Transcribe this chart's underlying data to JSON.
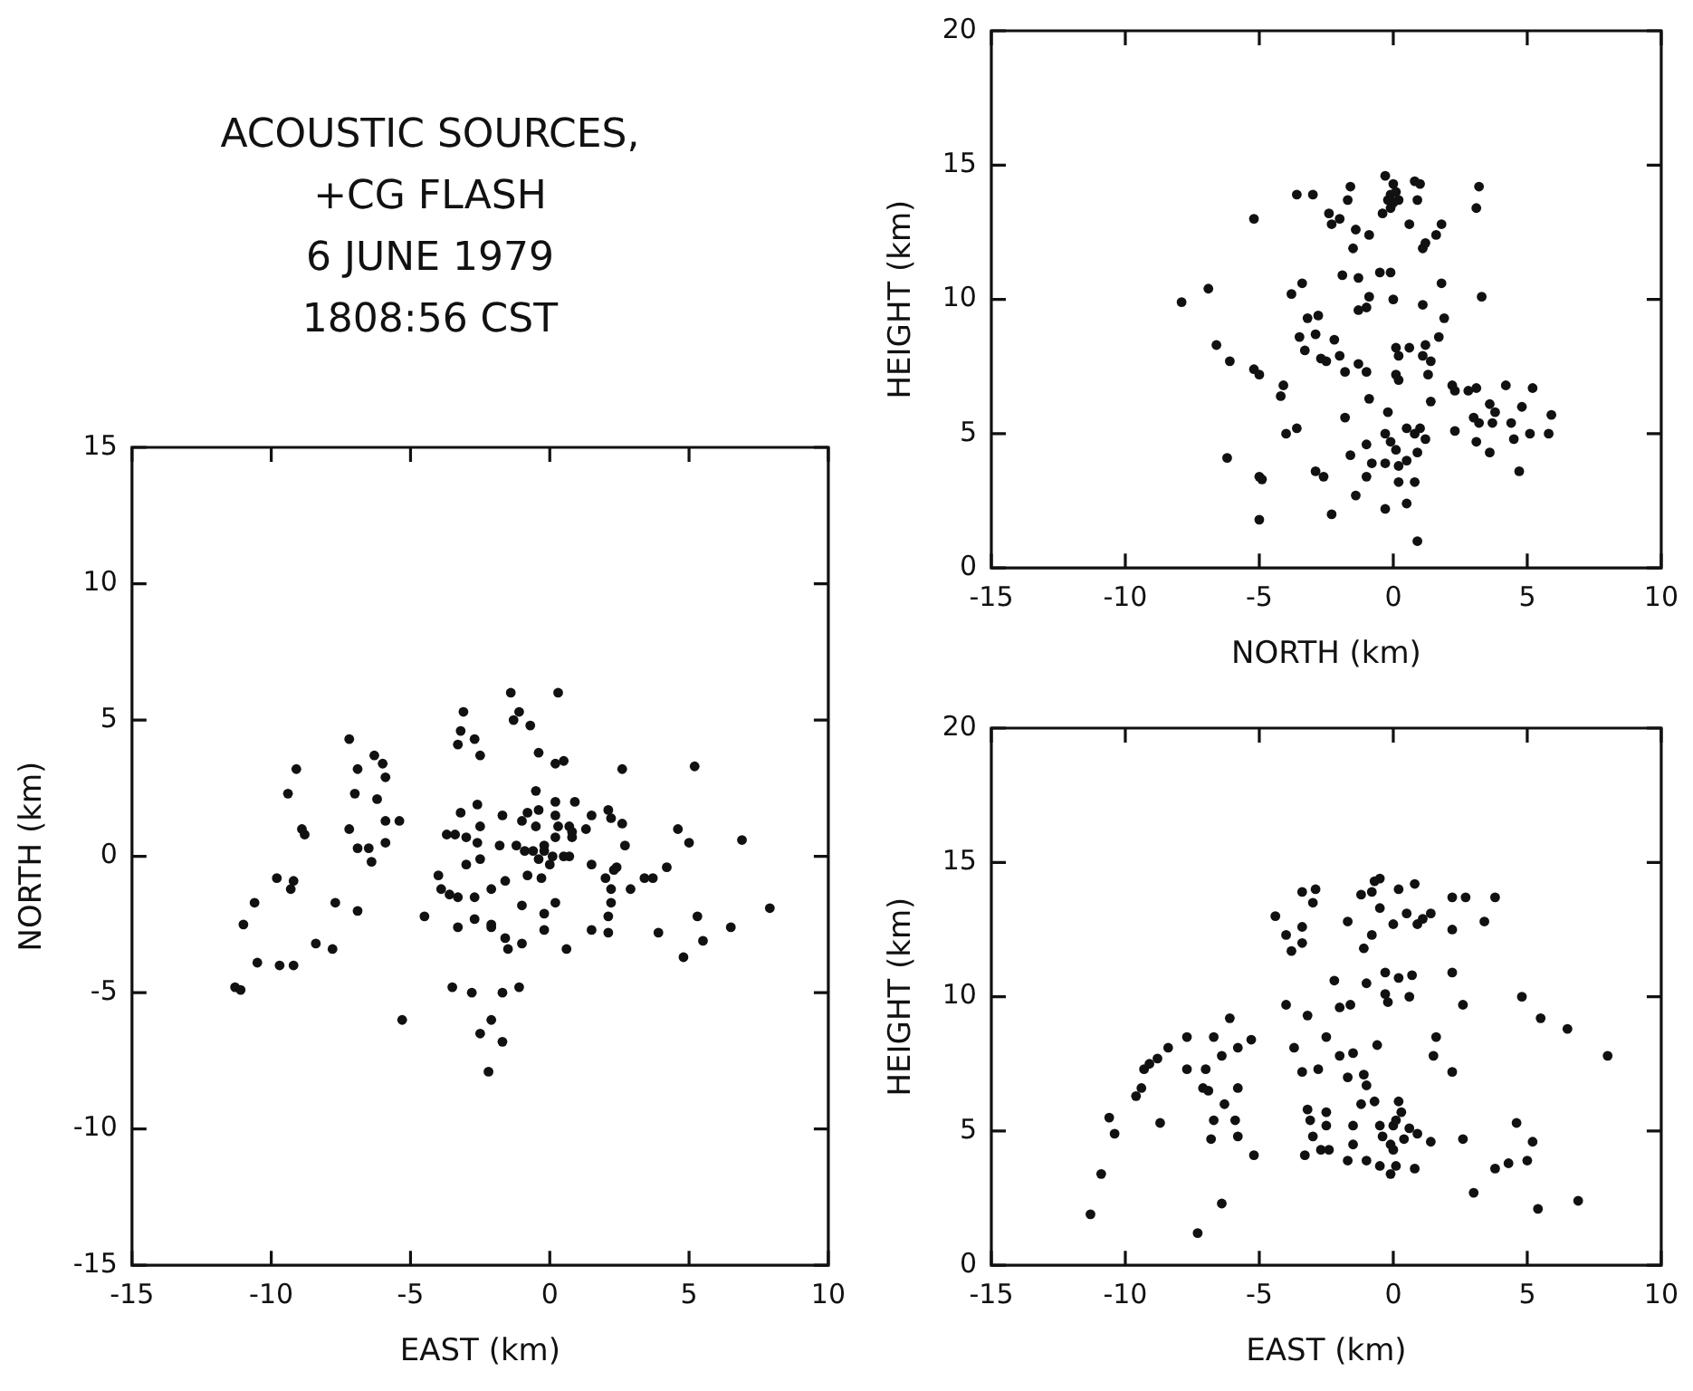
{
  "chart_data": [
    {
      "type": "scatter",
      "title": "ACOUSTIC SOURCES,\n+CG FLASH\n6 JUNE 1979\n1808:56 CST",
      "xlabel": "EAST (km)",
      "ylabel": "NORTH (km)",
      "color": "#111111",
      "marker": "circle",
      "xlim": [
        -15,
        10
      ],
      "ylim": [
        -15,
        15
      ],
      "xticks": [
        -15,
        -10,
        -5,
        0,
        5,
        10
      ],
      "yticks": [
        -15,
        -10,
        -5,
        0,
        5,
        10,
        15
      ],
      "x": [
        -1.4,
        0.3,
        -3.1,
        -1.1,
        -1.3,
        -0.7,
        -3.2,
        -2.7,
        -3.3,
        -2.5,
        -0.4,
        0.2,
        0.5,
        2.6,
        5.2,
        -7.2,
        -6.3,
        -6.0,
        -6.9,
        -5.9,
        -9.1,
        -9.4,
        -7.0,
        -6.2,
        -5.9,
        -5.4,
        -7.2,
        -8.9,
        -8.8,
        -6.9,
        -6.5,
        -5.9,
        -6.4,
        -9.8,
        -9.2,
        -9.3,
        -10.6,
        -11.0,
        -10.5,
        -9.7,
        -9.2,
        -11.3,
        -11.1,
        -7.7,
        -6.9,
        -8.4,
        -7.8,
        -4.5,
        -5.3,
        -3.5,
        -2.8,
        -1.7,
        -1.1,
        -2.1,
        -2.5,
        -1.7,
        -2.2,
        -4.0,
        -3.9,
        -3.6,
        -3.3,
        -2.7,
        -2.1,
        -1.6,
        -1.0,
        -0.2,
        0.2,
        -3.3,
        -2.7,
        -2.1,
        -2.1,
        -1.6,
        -1.5,
        -1.0,
        -0.2,
        0.6,
        1.5,
        2.1,
        2.1,
        2.2,
        2.2,
        2.9,
        3.4,
        3.7,
        4.2,
        2.4,
        1.5,
        -0.8,
        -0.3,
        -0.2,
        -0.6,
        -0.9,
        -1.2,
        0.1,
        0.5,
        0.7,
        -0.4,
        -0.2,
        0.0,
        0.2,
        0.3,
        0.7,
        0.8,
        0.8,
        0.2,
        0.2,
        0.9,
        -0.5,
        -0.5,
        -1.0,
        -0.8,
        -1.7,
        -1.8,
        -2.5,
        -3.2,
        -2.6,
        -3.7,
        -3.4,
        -3.0,
        -2.6,
        -2.5,
        -3.0,
        -0.4,
        1.5,
        2.1,
        2.2,
        2.6,
        1.3,
        2.7,
        4.6,
        5.0,
        6.9,
        7.9,
        5.3,
        6.5,
        5.5,
        4.8,
        3.9,
        2.0,
        2.3
      ],
      "values": [
        6.0,
        6.0,
        5.3,
        5.3,
        5.0,
        4.8,
        4.6,
        4.3,
        4.1,
        3.7,
        3.8,
        3.4,
        3.5,
        3.2,
        3.3,
        4.3,
        3.7,
        3.4,
        3.2,
        2.9,
        3.2,
        2.3,
        2.3,
        2.1,
        1.3,
        1.3,
        1.0,
        1.0,
        0.8,
        0.3,
        0.3,
        0.5,
        -0.2,
        -0.8,
        -0.9,
        -1.2,
        -1.7,
        -2.5,
        -3.9,
        -4.0,
        -4.0,
        -4.8,
        -4.9,
        -1.7,
        -2.0,
        -3.2,
        -3.4,
        -2.2,
        -6.0,
        -4.8,
        -5.0,
        -5.0,
        -4.8,
        -6.0,
        -6.5,
        -6.8,
        -7.9,
        -0.7,
        -1.2,
        -1.4,
        -1.5,
        -1.5,
        -1.2,
        -0.9,
        -1.8,
        -2.1,
        -1.7,
        -2.6,
        -2.3,
        -2.5,
        -2.6,
        -3.0,
        -3.4,
        -3.2,
        -2.7,
        -3.4,
        -2.7,
        -2.8,
        -2.2,
        -1.7,
        -1.2,
        -1.2,
        -0.8,
        -0.8,
        -0.4,
        -0.4,
        -0.3,
        -0.7,
        -0.8,
        0.2,
        0.2,
        0.2,
        0.4,
        0.0,
        0.0,
        0.0,
        -0.1,
        0.4,
        -0.3,
        0.7,
        1.1,
        1.1,
        0.9,
        0.7,
        1.5,
        2.0,
        2.0,
        2.4,
        1.1,
        1.3,
        1.6,
        1.5,
        0.4,
        1.1,
        1.6,
        1.9,
        0.8,
        0.8,
        0.7,
        0.5,
        -0.1,
        -0.3,
        1.7,
        1.5,
        1.7,
        1.4,
        1.2,
        1.0,
        0.4,
        1.0,
        0.5,
        0.6,
        -1.9,
        -2.2,
        -2.6,
        -3.1,
        -3.7,
        -2.8,
        -0.8,
        -0.5
      ]
    },
    {
      "type": "scatter",
      "xlabel": "NORTH (km)",
      "ylabel": "HEIGHT (km)",
      "color": "#111111",
      "marker": "circle",
      "xlim": [
        -15,
        10
      ],
      "ylim": [
        0,
        20
      ],
      "xticks": [
        -15,
        -10,
        -5,
        0,
        5,
        10
      ],
      "yticks": [
        0,
        5,
        10,
        15,
        20
      ],
      "x": [
        -3.0,
        -3.6,
        -1.6,
        -0.3,
        0.0,
        0.1,
        -0.2,
        -0.4,
        -0.1,
        0.2,
        0.8,
        1.0,
        0.9,
        3.2,
        3.1,
        -5.2,
        -2.4,
        -2.3,
        -2.0,
        -1.7,
        -1.4,
        -1.5,
        -0.9,
        0.6,
        1.8,
        1.6,
        1.2,
        1.1,
        -1.9,
        -1.3,
        -0.5,
        -0.1,
        -3.4,
        -3.8,
        -6.9,
        -7.9,
        -0.9,
        -1.0,
        -1.3,
        0.0,
        1.1,
        1.8,
        1.9,
        3.3,
        -3.2,
        -2.8,
        -3.5,
        -3.3,
        -2.9,
        -2.2,
        -2.0,
        -2.7,
        -2.5,
        -1.8,
        -1.3,
        -1.0,
        0.1,
        0.2,
        0.1,
        0.2,
        0.6,
        1.2,
        1.1,
        1.7,
        1.4,
        1.3,
        -6.6,
        -6.1,
        -5.2,
        -5.0,
        -4.1,
        -4.2,
        -0.9,
        1.4,
        2.2,
        2.3,
        2.8,
        3.1,
        4.2,
        5.2,
        3.6,
        3.8,
        4.8,
        5.9,
        3.0,
        2.3,
        3.2,
        3.7,
        4.4,
        3.1,
        3.6,
        4.5,
        5.1,
        5.8,
        4.7,
        -3.6,
        -4.0,
        -1.8,
        -0.2,
        -0.3,
        -0.1,
        0.1,
        0.5,
        0.8,
        1.0,
        1.2,
        0.9,
        0.5,
        0.2,
        -0.3,
        -0.8,
        -1.0,
        0.8,
        0.2,
        -1.6,
        -1.0,
        -2.9,
        -2.6,
        -6.2,
        -5.0,
        -4.9,
        -1.4,
        -0.3,
        0.5,
        -2.3,
        -5.0,
        0.9,
        0.0,
        -0.1
      ],
      "values": [
        13.9,
        13.9,
        14.2,
        14.6,
        14.3,
        14.0,
        13.7,
        13.2,
        13.4,
        13.7,
        14.4,
        14.3,
        13.7,
        14.2,
        13.4,
        13.0,
        13.2,
        12.8,
        13.0,
        13.7,
        12.6,
        11.9,
        12.4,
        12.8,
        12.8,
        12.4,
        12.1,
        11.9,
        10.9,
        10.8,
        11.0,
        11.0,
        10.6,
        10.2,
        10.4,
        9.9,
        10.1,
        9.7,
        9.6,
        10.0,
        9.8,
        10.6,
        9.3,
        10.1,
        9.3,
        9.4,
        8.6,
        8.1,
        8.7,
        8.5,
        7.9,
        7.8,
        7.7,
        7.3,
        7.6,
        7.3,
        8.2,
        7.9,
        7.2,
        7.0,
        8.2,
        8.3,
        7.9,
        8.6,
        7.7,
        7.2,
        8.3,
        7.7,
        7.4,
        7.2,
        6.8,
        6.4,
        6.3,
        6.2,
        6.8,
        6.6,
        6.6,
        6.7,
        6.8,
        6.7,
        6.1,
        5.8,
        6.0,
        5.7,
        5.6,
        5.1,
        5.4,
        5.4,
        5.4,
        4.7,
        4.3,
        4.8,
        5.0,
        5.0,
        3.6,
        5.2,
        5.0,
        5.6,
        5.8,
        5.0,
        4.7,
        4.4,
        5.2,
        5.0,
        5.2,
        4.8,
        4.3,
        4.0,
        3.8,
        3.9,
        3.9,
        3.4,
        3.2,
        3.2,
        4.2,
        4.6,
        3.6,
        3.4,
        4.1,
        3.4,
        3.3,
        2.7,
        2.2,
        2.4,
        2.0,
        1.8,
        1.0,
        13.6,
        13.9
      ]
    },
    {
      "type": "scatter",
      "xlabel": "EAST (km)",
      "ylabel": "HEIGHT (km)",
      "color": "#111111",
      "marker": "circle",
      "xlim": [
        -15,
        10
      ],
      "ylim": [
        0,
        20
      ],
      "xticks": [
        -15,
        -10,
        -5,
        0,
        5,
        10
      ],
      "yticks": [
        0,
        5,
        10,
        15,
        20
      ],
      "x": [
        -10.9,
        -10.6,
        -10.4,
        -9.6,
        -9.4,
        -9.3,
        -9.1,
        -8.8,
        -8.7,
        -8.4,
        -7.7,
        -7.7,
        -7.0,
        -7.1,
        -6.9,
        -6.7,
        -6.7,
        -6.8,
        -6.4,
        -6.3,
        -6.1,
        -5.9,
        -5.8,
        -5.8,
        -5.8,
        -5.3,
        -5.2,
        -4.4,
        -4.0,
        -4.0,
        -3.8,
        -3.4,
        -3.4,
        -3.4,
        -2.9,
        -3.0,
        -3.2,
        -3.7,
        -3.4,
        -3.3,
        -3.2,
        -3.1,
        -3.0,
        -2.8,
        -2.7,
        -2.5,
        -2.5,
        -2.5,
        -2.4,
        -2.2,
        -2.0,
        -2.0,
        -1.7,
        -1.6,
        -1.5,
        -1.7,
        -1.7,
        -1.5,
        -1.5,
        -1.2,
        -1.1,
        -1.0,
        -1.1,
        -1.0,
        -0.8,
        -0.7,
        -0.6,
        -0.5,
        -0.4,
        -0.3,
        -0.3,
        -0.2,
        0.0,
        0.1,
        0.2,
        0.3,
        0.4,
        0.6,
        0.9,
        1.4,
        -0.1,
        0.0,
        -1.0,
        -0.5,
        -0.1,
        0.1,
        0.8,
        -1.2,
        -0.8,
        -0.5,
        -0.7,
        -0.5,
        0.0,
        0.2,
        0.8,
        0.5,
        1.1,
        1.4,
        0.9,
        0.2,
        0.7,
        0.6,
        1.6,
        1.5,
        2.2,
        2.2,
        2.6,
        2.2,
        2.2,
        2.7,
        3.4,
        3.8,
        4.8,
        5.5,
        6.5,
        8.0,
        2.6,
        4.6,
        5.2,
        5.0,
        4.3,
        3.8,
        3.0,
        6.9,
        -6.4,
        5.4,
        -11.3,
        -7.3
      ],
      "values": [
        3.4,
        5.5,
        4.9,
        6.3,
        6.6,
        7.3,
        7.5,
        7.7,
        5.3,
        8.1,
        8.5,
        7.3,
        7.3,
        6.6,
        6.5,
        8.5,
        5.4,
        4.7,
        7.8,
        6.0,
        9.2,
        5.4,
        4.8,
        6.6,
        8.1,
        8.4,
        4.1,
        13.0,
        9.7,
        12.3,
        11.7,
        12.6,
        12.0,
        13.9,
        14.0,
        13.5,
        9.3,
        8.1,
        7.2,
        4.1,
        5.8,
        5.4,
        4.8,
        7.3,
        4.3,
        8.5,
        5.7,
        5.2,
        4.3,
        10.6,
        9.6,
        7.8,
        12.8,
        9.7,
        7.9,
        7.0,
        3.9,
        5.2,
        4.5,
        6.0,
        7.1,
        6.7,
        11.8,
        10.5,
        12.3,
        6.1,
        8.2,
        5.2,
        4.8,
        10.9,
        10.1,
        9.8,
        5.2,
        5.4,
        6.1,
        5.7,
        4.7,
        5.1,
        4.9,
        4.6,
        4.5,
        4.3,
        3.9,
        3.7,
        3.4,
        3.7,
        3.6,
        13.8,
        13.9,
        13.3,
        14.3,
        14.4,
        12.7,
        14.0,
        14.2,
        13.1,
        12.9,
        13.1,
        12.7,
        10.7,
        10.8,
        10.0,
        8.5,
        7.8,
        7.2,
        10.9,
        9.7,
        12.5,
        13.7,
        13.7,
        12.8,
        13.7,
        10.0,
        9.2,
        8.8,
        7.8,
        4.7,
        5.3,
        4.6,
        3.9,
        3.8,
        3.6,
        2.7,
        2.4,
        2.3,
        2.1,
        1.9,
        1.2
      ]
    }
  ]
}
